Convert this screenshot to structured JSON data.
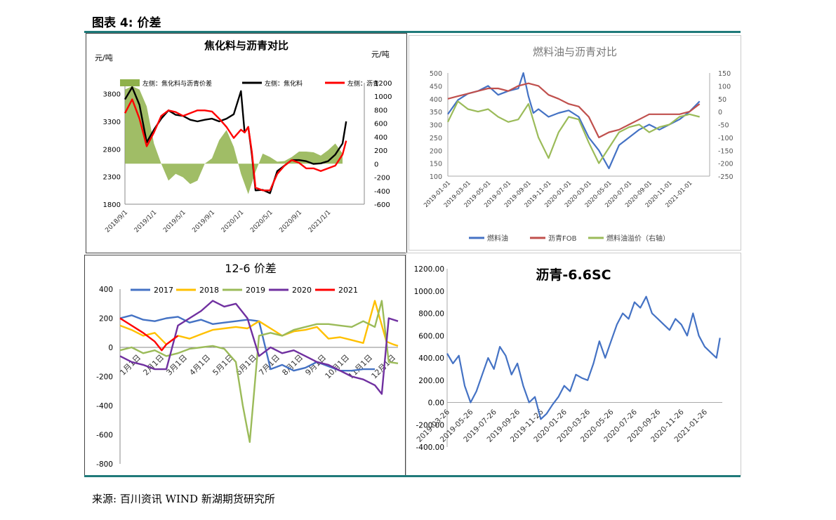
{
  "page": {
    "figure_title": "图表 4: 价差",
    "source": "来源: 百川资讯 WIND 新湖期货研究所"
  },
  "colors": {
    "frame_rule": "#1f7a7a",
    "green": "#8fb14b",
    "black": "#000000",
    "red": "#ff0000",
    "blue": "#4472c4",
    "dark_red": "#c0504d",
    "light_green": "#9bbb59",
    "yellow": "#ffc000",
    "purple": "#7030a0"
  },
  "chart_data": [
    {
      "id": "coke",
      "type": "line",
      "title": "焦化料与沥青对比",
      "left_unit": "元/吨",
      "right_unit": "元/吨",
      "left_ylim": [
        1800,
        4000
      ],
      "left_ticks": [
        1800,
        2300,
        2800,
        3300,
        3800
      ],
      "right_ylim": [
        -600,
        1200
      ],
      "right_ticks": [
        -600,
        -400,
        -200,
        0,
        200,
        400,
        600,
        800,
        1000,
        1200
      ],
      "xlim": [
        0,
        33
      ],
      "x_ticks": [
        {
          "x": 0,
          "label": "2018/9/1"
        },
        {
          "x": 4,
          "label": "2019/1/1"
        },
        {
          "x": 8,
          "label": "2019/5/1"
        },
        {
          "x": 12,
          "label": "2019/9/1"
        },
        {
          "x": 16,
          "label": "2020/1/1"
        },
        {
          "x": 20,
          "label": "2020/5/1"
        },
        {
          "x": 24,
          "label": "2020/9/1"
        },
        {
          "x": 28,
          "label": "2021/1/1"
        }
      ],
      "legend": [
        "左侧：焦化料与沥青价差",
        "左侧：焦化料",
        "左侧：沥青"
      ],
      "series": [
        {
          "name": "左侧：焦化料与沥青价差",
          "axis": "right",
          "kind": "area",
          "color": "#8fb14b",
          "x": [
            0,
            1,
            2,
            3,
            4,
            5,
            6,
            7,
            8,
            9,
            10,
            11,
            12,
            13,
            14,
            15,
            16,
            17,
            18,
            19,
            20,
            21,
            22,
            23,
            24,
            25,
            26,
            27,
            28,
            29,
            30
          ],
          "y": [
            1100,
            1150,
            1100,
            850,
            300,
            0,
            -250,
            -150,
            -200,
            -300,
            -250,
            0,
            80,
            350,
            500,
            250,
            -150,
            -450,
            -120,
            150,
            100,
            30,
            40,
            100,
            180,
            180,
            170,
            120,
            200,
            300,
            150
          ]
        },
        {
          "name": "左侧：焦化料",
          "axis": "left",
          "kind": "line",
          "color": "#000000",
          "x": [
            0,
            1,
            2,
            3,
            4,
            5,
            6,
            7,
            8,
            9,
            10,
            11,
            12,
            13,
            14,
            15,
            16,
            16.5,
            17,
            17.5,
            18,
            19,
            20,
            20.5,
            21,
            22,
            23,
            24,
            25,
            26,
            27,
            28,
            29,
            30,
            30.5
          ],
          "y": [
            3700,
            3920,
            3600,
            2920,
            3150,
            3350,
            3500,
            3420,
            3400,
            3330,
            3300,
            3330,
            3350,
            3300,
            3350,
            3430,
            3850,
            3100,
            3200,
            2700,
            2050,
            2060,
            2000,
            2200,
            2400,
            2500,
            2600,
            2600,
            2580,
            2530,
            2540,
            2580,
            2700,
            2900,
            3300
          ]
        },
        {
          "name": "左侧：沥青",
          "axis": "left",
          "kind": "line",
          "color": "#ff0000",
          "x": [
            0,
            1,
            2,
            3,
            4,
            5,
            6,
            7,
            8,
            9,
            10,
            11,
            12,
            13,
            14,
            15,
            16,
            16.5,
            17,
            17.5,
            18,
            19,
            20,
            20.5,
            21,
            22,
            23,
            24,
            25,
            26,
            27,
            28,
            29,
            30,
            30.5
          ],
          "y": [
            3450,
            3700,
            3350,
            2850,
            3100,
            3400,
            3500,
            3470,
            3400,
            3450,
            3500,
            3500,
            3480,
            3350,
            3200,
            3000,
            3150,
            3100,
            3200,
            2750,
            2100,
            2050,
            2050,
            2200,
            2350,
            2500,
            2600,
            2550,
            2450,
            2450,
            2400,
            2450,
            2500,
            2700,
            2950
          ]
        }
      ]
    },
    {
      "id": "fuel",
      "type": "line",
      "title": "燃料油与沥青对比",
      "left_ylim": [
        100,
        500
      ],
      "left_ticks": [
        100,
        150,
        200,
        250,
        300,
        350,
        400,
        450,
        500
      ],
      "right_ylim": [
        -250,
        150
      ],
      "right_ticks": [
        -250,
        -200,
        -150,
        -100,
        -50,
        0,
        50,
        100,
        150
      ],
      "xlim": [
        0,
        26
      ],
      "x_ticks": [
        {
          "x": 0,
          "label": "2019-01-01"
        },
        {
          "x": 2,
          "label": "2019-03-01"
        },
        {
          "x": 4,
          "label": "2019-05-01"
        },
        {
          "x": 6,
          "label": "2019-07-01"
        },
        {
          "x": 8,
          "label": "2019-09-01"
        },
        {
          "x": 10,
          "label": "2019-11-01"
        },
        {
          "x": 12,
          "label": "2020-01-01"
        },
        {
          "x": 14,
          "label": "2020-03-01"
        },
        {
          "x": 16,
          "label": "2020-05-01"
        },
        {
          "x": 18,
          "label": "2020-07-01"
        },
        {
          "x": 20,
          "label": "2020-09-01"
        },
        {
          "x": 22,
          "label": "2020-11-01"
        },
        {
          "x": 24,
          "label": "2021-01-01"
        }
      ],
      "legend": [
        "燃料油",
        "沥青FOB",
        "燃料油溢价（右轴）"
      ],
      "series": [
        {
          "name": "燃料油",
          "axis": "left",
          "color": "#4472c4",
          "x": [
            0,
            1,
            2,
            3,
            4,
            5,
            6,
            7,
            7.5,
            8,
            8.5,
            9,
            10,
            11,
            12,
            13,
            14,
            15,
            16,
            17,
            18,
            19,
            20,
            21,
            22,
            23,
            24,
            25
          ],
          "y": [
            340,
            395,
            420,
            430,
            450,
            415,
            430,
            440,
            500,
            410,
            345,
            360,
            330,
            345,
            355,
            330,
            250,
            200,
            130,
            220,
            250,
            280,
            300,
            280,
            300,
            320,
            350,
            390
          ]
        },
        {
          "name": "沥青FOB",
          "axis": "left",
          "color": "#c0504d",
          "x": [
            0,
            1,
            2,
            3,
            4,
            5,
            6,
            7,
            8,
            9,
            10,
            11,
            12,
            13,
            14,
            15,
            16,
            17,
            18,
            19,
            20,
            21,
            22,
            23,
            24,
            25
          ],
          "y": [
            400,
            410,
            420,
            430,
            440,
            440,
            430,
            450,
            460,
            450,
            415,
            400,
            380,
            370,
            330,
            250,
            270,
            280,
            300,
            320,
            340,
            340,
            340,
            340,
            350,
            380
          ]
        },
        {
          "name": "燃料油溢价（右轴）",
          "axis": "right",
          "color": "#9bbb59",
          "x": [
            0,
            1,
            2,
            3,
            4,
            5,
            6,
            7,
            8,
            9,
            10,
            11,
            12,
            13,
            14,
            15,
            16,
            17,
            18,
            19,
            20,
            21,
            22,
            23,
            24,
            25
          ],
          "y": [
            -40,
            40,
            10,
            0,
            10,
            -20,
            -40,
            -30,
            30,
            -100,
            -180,
            -80,
            -20,
            -30,
            -120,
            -200,
            -140,
            -80,
            -60,
            -50,
            -80,
            -60,
            -50,
            -20,
            -10,
            -20
          ]
        }
      ]
    },
    {
      "id": "spread126",
      "type": "line",
      "title": "12-6  价差",
      "ylim": [
        -800,
        400
      ],
      "y_ticks": [
        -800,
        -600,
        -400,
        -200,
        0,
        200,
        400
      ],
      "xlim": [
        0,
        12
      ],
      "x_ticks": [
        {
          "x": 0,
          "label": "1月1日"
        },
        {
          "x": 1,
          "label": "2月1日"
        },
        {
          "x": 2,
          "label": "3月1日"
        },
        {
          "x": 3,
          "label": "4月1日"
        },
        {
          "x": 4,
          "label": "5月1日"
        },
        {
          "x": 5,
          "label": "6月1日"
        },
        {
          "x": 6,
          "label": "7月1日"
        },
        {
          "x": 7,
          "label": "8月1日"
        },
        {
          "x": 8,
          "label": "9月1日"
        },
        {
          "x": 9,
          "label": "10月1日"
        },
        {
          "x": 10,
          "label": "11月1日"
        },
        {
          "x": 11,
          "label": "12月1日"
        }
      ],
      "legend": [
        "2017",
        "2018",
        "2019",
        "2020",
        "2021"
      ],
      "series": [
        {
          "name": "2017",
          "color": "#4472c4",
          "x": [
            0,
            0.5,
            1,
            1.5,
            2,
            2.5,
            3,
            3.5,
            4,
            4.5,
            5,
            5.5,
            6,
            6.5,
            7,
            7.5,
            8,
            8.5,
            9,
            9.5,
            10,
            10.5,
            11
          ],
          "y": [
            200,
            220,
            190,
            180,
            200,
            210,
            170,
            190,
            160,
            170,
            180,
            190,
            180,
            -150,
            -120,
            -160,
            -140,
            -100,
            -130,
            -160,
            -160,
            -150,
            -150
          ]
        },
        {
          "name": "2018",
          "color": "#ffc000",
          "x": [
            0,
            0.5,
            1,
            1.5,
            2,
            2.5,
            3,
            3.5,
            4,
            4.5,
            5,
            5.5,
            6,
            6.5,
            7,
            7.5,
            8,
            8.5,
            9,
            9.5,
            10,
            10.5,
            11,
            11.5,
            11.8,
            12
          ],
          "y": [
            150,
            120,
            80,
            100,
            20,
            80,
            60,
            90,
            120,
            130,
            140,
            130,
            180,
            130,
            80,
            110,
            120,
            140,
            60,
            70,
            50,
            30,
            320,
            40,
            20,
            10
          ]
        },
        {
          "name": "2019",
          "color": "#9bbb59",
          "x": [
            0,
            0.5,
            1,
            1.5,
            2,
            2.5,
            3,
            3.5,
            4,
            4.5,
            5,
            5.3,
            5.6,
            6,
            6.5,
            7,
            7.5,
            8,
            8.5,
            9,
            9.5,
            10,
            10.5,
            11,
            11.3,
            11.6,
            12
          ],
          "y": [
            -20,
            0,
            -40,
            -20,
            -60,
            -40,
            -10,
            0,
            10,
            -10,
            -100,
            -400,
            -650,
            80,
            100,
            80,
            120,
            140,
            160,
            160,
            150,
            140,
            180,
            140,
            320,
            -100,
            -110
          ]
        },
        {
          "name": "2020",
          "color": "#7030a0",
          "x": [
            0,
            0.5,
            1,
            1.5,
            2,
            2.5,
            3,
            3.5,
            4,
            4.5,
            5,
            5.5,
            6,
            6.5,
            7,
            7.5,
            8,
            8.5,
            9,
            9.5,
            10,
            10.5,
            11,
            11.3,
            11.6,
            12
          ],
          "y": [
            -60,
            -100,
            -120,
            -150,
            -150,
            150,
            200,
            250,
            320,
            280,
            300,
            200,
            -60,
            0,
            -40,
            -20,
            -60,
            -100,
            -120,
            -160,
            -200,
            -220,
            -260,
            -320,
            200,
            180
          ]
        },
        {
          "name": "2021",
          "color": "#ff0000",
          "x": [
            0,
            0.5,
            1,
            1.5,
            1.8,
            2,
            2.5
          ],
          "y": [
            200,
            150,
            100,
            40,
            -20,
            20,
            80
          ]
        }
      ]
    },
    {
      "id": "asphalt_sc",
      "type": "line",
      "title": "沥青-6.6SC",
      "ylim": [
        -400,
        1200
      ],
      "y_ticks": [
        {
          "v": -400,
          "label": "-400.00"
        },
        {
          "v": -200,
          "label": "-200.00"
        },
        {
          "v": 0,
          "label": "0.00"
        },
        {
          "v": 200,
          "label": "200.00"
        },
        {
          "v": 400,
          "label": "400.00"
        },
        {
          "v": 600,
          "label": "600.00"
        },
        {
          "v": 800,
          "label": "800.00"
        },
        {
          "v": 1000,
          "label": "1000.00"
        },
        {
          "v": 1200,
          "label": "1200.00"
        }
      ],
      "xlim": [
        0,
        23.5
      ],
      "x_ticks": [
        {
          "x": 0,
          "label": "2019-03-26"
        },
        {
          "x": 2,
          "label": "2019-05-26"
        },
        {
          "x": 4,
          "label": "2019-07-26"
        },
        {
          "x": 6,
          "label": "2019-09-26"
        },
        {
          "x": 8,
          "label": "2019-11-26"
        },
        {
          "x": 10,
          "label": "2020-01-26"
        },
        {
          "x": 12,
          "label": "2020-03-26"
        },
        {
          "x": 14,
          "label": "2020-05-26"
        },
        {
          "x": 16,
          "label": "2020-07-26"
        },
        {
          "x": 18,
          "label": "2020-09-26"
        },
        {
          "x": 20,
          "label": "2020-11-26"
        },
        {
          "x": 22,
          "label": "2021-01-26"
        }
      ],
      "series": [
        {
          "name": "沥青-6.6SC",
          "color": "#4472c4",
          "x": [
            0,
            0.5,
            1,
            1.5,
            2,
            2.5,
            3,
            3.5,
            4,
            4.5,
            5,
            5.5,
            6,
            6.5,
            7,
            7.5,
            8,
            8.5,
            9,
            9.5,
            10,
            10.5,
            11,
            11.5,
            12,
            12.5,
            13,
            13.5,
            14,
            14.5,
            15,
            15.5,
            16,
            16.5,
            17,
            17.5,
            18,
            18.5,
            19,
            19.5,
            20,
            20.5,
            21,
            21.5,
            22,
            22.5,
            23,
            23.3
          ],
          "y": [
            440,
            350,
            420,
            150,
            0,
            100,
            250,
            400,
            300,
            500,
            420,
            250,
            350,
            150,
            0,
            50,
            -150,
            -100,
            -20,
            50,
            150,
            100,
            250,
            220,
            200,
            350,
            550,
            400,
            550,
            700,
            800,
            750,
            900,
            850,
            950,
            800,
            750,
            700,
            650,
            750,
            700,
            600,
            800,
            600,
            500,
            450,
            400,
            580
          ]
        }
      ]
    }
  ]
}
